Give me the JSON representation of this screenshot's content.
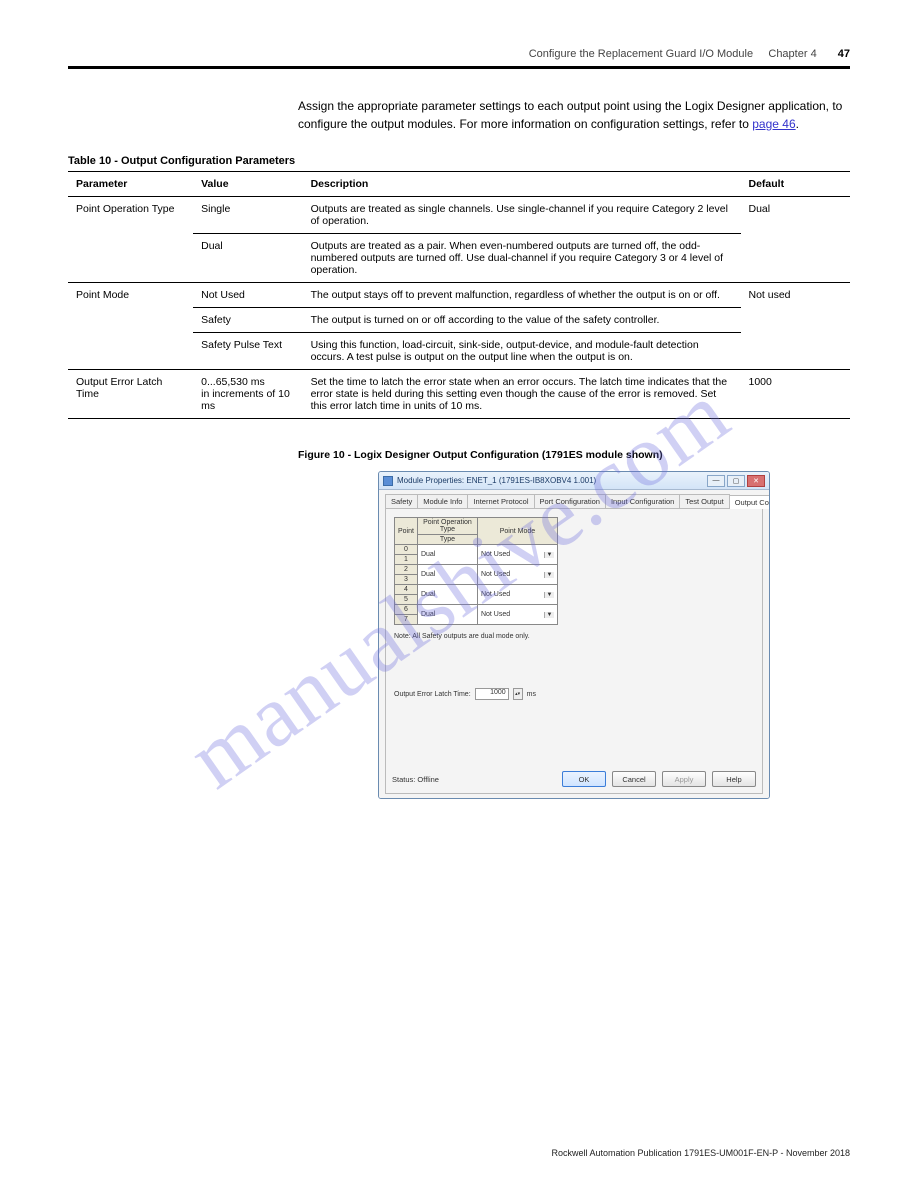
{
  "header": {
    "chapter": "Configure the Replacement Guard I/O Module",
    "chapter_label": "Chapter 4",
    "page_number": "47"
  },
  "paragraphs": {
    "p1_a": "Assign the appropriate parameter settings to each output point using the Logix Designer application, to configure the output modules. For more information on configuration settings, refer to ",
    "p1_link": "page 46",
    "p1_b": "."
  },
  "table": {
    "caption_num": "Table 10 - ",
    "caption_txt": "Output Configuration Parameters",
    "headers": [
      "Parameter",
      "Value",
      "Description",
      "Default"
    ],
    "rows": [
      {
        "param": "Point Operation Type",
        "value": "Single",
        "desc": "Outputs are treated as single channels. Use single-channel if you require Category 2 level of operation.",
        "def": "Dual"
      },
      {
        "param": "",
        "value": "Dual",
        "desc": "Outputs are treated as a pair. When even-numbered outputs are turned off, the odd-numbered outputs are turned off. Use dual-channel if you require Category 3 or 4 level of operation.",
        "def": ""
      },
      {
        "param": "Point Mode",
        "value": "Not Used",
        "desc": "The output stays off to prevent malfunction, regardless of whether the output is on or off.",
        "def": "Not used"
      },
      {
        "param": "",
        "value": "Safety",
        "desc": "The output is turned on or off according to the value of the safety controller.",
        "def": ""
      },
      {
        "param": "",
        "value": "Safety Pulse Text",
        "desc": "Using this function, load-circuit, sink-side, output-device, and module-fault detection occurs. A test pulse is output on the output line when the output is on.",
        "def": ""
      },
      {
        "param": "Output Error Latch Time",
        "value": "0...65,530 ms\nin increments of 10 ms",
        "desc": "Set the time to latch the error state when an error occurs. The latch time indicates that the error state is held during this setting even though the cause of the error is removed. Set this error latch time in units of 10 ms.",
        "def": "1000"
      }
    ]
  },
  "figure": {
    "num": "Figure 10 - ",
    "txt": "Logix Designer Output Configuration (1791ES module shown)"
  },
  "dialog": {
    "title": "Module Properties: ENET_1 (1791ES-IB8XOBV4 1.001)",
    "tabs": [
      "Safety",
      "Module Info",
      "Internet Protocol",
      "Port Configuration",
      "Input Configuration",
      "Test Output",
      "Output Configuration"
    ],
    "active_tab": 6,
    "points_header": {
      "col1": "Point",
      "col2": "Point Operation\nType",
      "col3": "Point Mode"
    },
    "points": [
      {
        "pt": "0",
        "op": "Dual",
        "mode": "Not Used"
      },
      {
        "pt": "1",
        "op": "",
        "mode": ""
      },
      {
        "pt": "2",
        "op": "Dual",
        "mode": "Not Used"
      },
      {
        "pt": "3",
        "op": "",
        "mode": ""
      },
      {
        "pt": "4",
        "op": "Dual",
        "mode": "Not Used"
      },
      {
        "pt": "5",
        "op": "",
        "mode": ""
      },
      {
        "pt": "6",
        "op": "Dual",
        "mode": "Not Used"
      },
      {
        "pt": "7",
        "op": "",
        "mode": ""
      }
    ],
    "note": "Note: All Safety outputs are dual mode only.",
    "latch_label": "Output Error Latch Time:",
    "latch_value": "1000",
    "latch_unit": "ms",
    "status": "Status: Offline",
    "buttons": {
      "ok": "OK",
      "cancel": "Cancel",
      "apply": "Apply",
      "help": "Help"
    }
  },
  "footer": {
    "pub": "Rockwell Automation Publication 1791ES-UM001F-EN-P - November 2018"
  },
  "watermark": "manualshive.com"
}
